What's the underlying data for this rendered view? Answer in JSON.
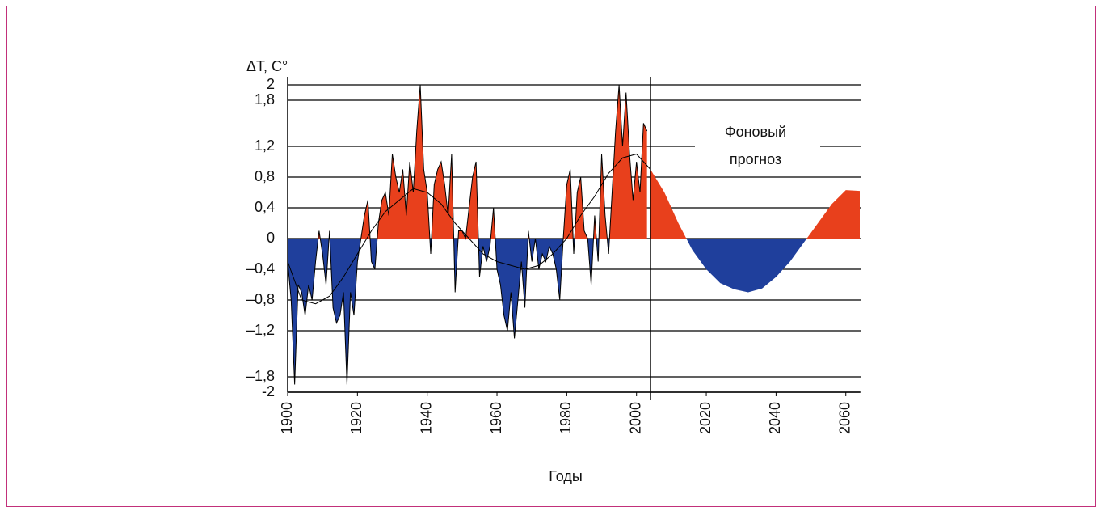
{
  "chart_data": {
    "type": "area",
    "y_label": "ΔT, C°",
    "x_label": "Годы",
    "annotation": [
      "Фоновый",
      "прогноз"
    ],
    "forecast_start": 2004,
    "positive_color": "#e8401c",
    "negative_color": "#1f3f9c",
    "line_color": "#000000",
    "grid": true,
    "xlim": [
      1900,
      2064
    ],
    "xticks": [
      1900,
      1920,
      1940,
      1960,
      1980,
      2000,
      2020,
      2040,
      2060
    ],
    "ylim": [
      -2,
      2
    ],
    "yticks": [
      2,
      {
        "value": 1.8,
        "label": "1,8"
      },
      {
        "value": 1.2,
        "label": "1,2"
      },
      {
        "value": 0.8,
        "label": "0,8"
      },
      {
        "value": 0.4,
        "label": "0,4"
      },
      0,
      {
        "value": -0.4,
        "label": "–0,4"
      },
      {
        "value": -0.8,
        "label": "–0,8"
      },
      {
        "value": -1.2,
        "label": "–1,2"
      },
      {
        "value": -1.8,
        "label": "–1,8"
      },
      -2
    ],
    "series": [
      {
        "x": [
          1900,
          1901,
          1902,
          1903,
          1904,
          1905,
          1906,
          1907,
          1908,
          1909,
          1910,
          1911,
          1912,
          1913,
          1914,
          1915,
          1916,
          1917,
          1918,
          1919,
          1920,
          1921,
          1922,
          1923,
          1924,
          1925,
          1926,
          1927,
          1928,
          1929,
          1930,
          1931,
          1932,
          1933,
          1934,
          1935,
          1936,
          1937,
          1938,
          1939,
          1940,
          1941,
          1942,
          1943,
          1944,
          1945,
          1946,
          1947,
          1948,
          1949,
          1950,
          1951,
          1952,
          1953,
          1954,
          1955,
          1956,
          1957,
          1958,
          1959,
          1960,
          1961,
          1962,
          1963,
          1964,
          1965,
          1966,
          1967,
          1968,
          1969,
          1970,
          1971,
          1972,
          1973,
          1974,
          1975,
          1976,
          1977,
          1978,
          1979,
          1980,
          1981,
          1982,
          1983,
          1984,
          1985,
          1986,
          1987,
          1988,
          1989,
          1990,
          1991,
          1992,
          1993,
          1994,
          1995,
          1996,
          1997,
          1998,
          1999,
          2000,
          2001,
          2002,
          2003
        ],
        "values": [
          -0.3,
          -0.8,
          -1.9,
          -0.6,
          -0.7,
          -1.0,
          -0.6,
          -0.8,
          -0.3,
          0.1,
          -0.2,
          -0.6,
          0.1,
          -0.9,
          -1.1,
          -1.0,
          -0.7,
          -1.9,
          -0.7,
          -1.0,
          -0.3,
          0.0,
          0.3,
          0.5,
          -0.3,
          -0.4,
          0.2,
          0.5,
          0.6,
          0.3,
          1.1,
          0.8,
          0.6,
          0.9,
          0.3,
          1.0,
          0.6,
          1.4,
          2.0,
          0.9,
          0.6,
          -0.2,
          0.7,
          0.9,
          1.0,
          0.7,
          0.3,
          1.1,
          -0.7,
          0.1,
          0.1,
          0.0,
          0.4,
          0.8,
          1.0,
          -0.5,
          -0.1,
          -0.3,
          -0.1,
          0.4,
          -0.4,
          -0.6,
          -1.0,
          -1.2,
          -0.7,
          -1.3,
          -0.8,
          -0.3,
          -0.9,
          0.1,
          -0.3,
          0.0,
          -0.4,
          -0.2,
          -0.3,
          -0.1,
          -0.2,
          -0.4,
          -0.8,
          0.0,
          0.7,
          0.9,
          -0.2,
          0.6,
          0.8,
          0.1,
          0.0,
          -0.6,
          0.3,
          -0.3,
          1.1,
          0.3,
          -0.2,
          0.6,
          1.4,
          2.0,
          1.2,
          1.9,
          1.1,
          0.5,
          1.0,
          0.6,
          1.5,
          1.4
        ]
      },
      {
        "x": [
          1900,
          1904,
          1908,
          1912,
          1916,
          1920,
          1924,
          1928,
          1932,
          1936,
          1940,
          1944,
          1948,
          1952,
          1956,
          1960,
          1964,
          1968,
          1972,
          1976,
          1980,
          1984,
          1988,
          1992,
          1996,
          2000,
          2004,
          2008,
          2012,
          2016,
          2020,
          2024,
          2028,
          2032,
          2036,
          2040,
          2044,
          2048,
          2052,
          2056,
          2060,
          2064
        ],
        "values": [
          -0.3,
          -0.8,
          -0.85,
          -0.75,
          -0.5,
          -0.2,
          0.1,
          0.35,
          0.5,
          0.65,
          0.6,
          0.45,
          0.2,
          0.0,
          -0.2,
          -0.3,
          -0.35,
          -0.4,
          -0.35,
          -0.2,
          0.0,
          0.3,
          0.55,
          0.85,
          1.05,
          1.1,
          0.9,
          0.6,
          0.2,
          -0.15,
          -0.4,
          -0.58,
          -0.66,
          -0.7,
          -0.65,
          -0.5,
          -0.3,
          -0.05,
          0.2,
          0.45,
          0.63,
          0.62
        ]
      }
    ]
  }
}
